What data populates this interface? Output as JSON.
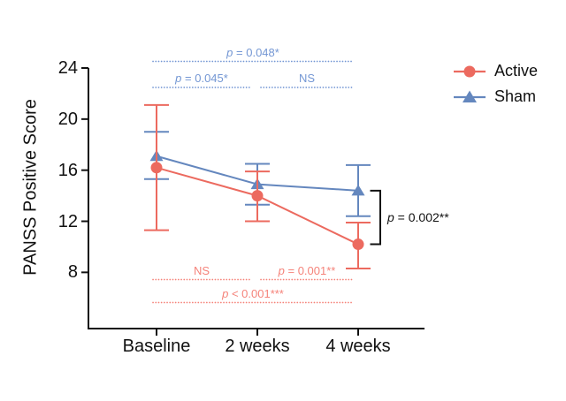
{
  "chart_data": {
    "type": "line",
    "title": "",
    "ylabel": "PANSS Positive Score",
    "categories": [
      "Baseline",
      "2 weeks",
      "4 weeks"
    ],
    "yticks": [
      24,
      20,
      16,
      12,
      8
    ],
    "ylim": [
      3.5,
      24
    ],
    "grid": false,
    "legend_position": "right",
    "legend": [
      "Active",
      "Sham"
    ],
    "series": [
      {
        "name": "Sham",
        "marker": "triangle",
        "color": "#6487BE",
        "values": [
          17.1,
          14.9,
          14.4
        ],
        "err_low": [
          15.3,
          13.3,
          12.4
        ],
        "err_high": [
          19.0,
          16.5,
          16.4
        ]
      },
      {
        "name": "Active",
        "marker": "circle",
        "color": "#EC6A5F",
        "values": [
          16.2,
          14.0,
          10.2
        ],
        "err_low": [
          11.3,
          12.0,
          8.3
        ],
        "err_high": [
          21.1,
          15.9,
          11.9
        ]
      }
    ],
    "comparisons": {
      "sham_color": "#7497D4",
      "active_color": "#F5837A",
      "sham": [
        {
          "label": "p = 0.048*",
          "from": 0,
          "to": 2,
          "row": 0
        },
        {
          "label": "p = 0.045*",
          "from": 0,
          "to": 1,
          "row": 1
        },
        {
          "label": "NS",
          "from": 1,
          "to": 2,
          "row": 1
        }
      ],
      "active": [
        {
          "label": "NS",
          "from": 0,
          "to": 1,
          "row": 0
        },
        {
          "label": "p = 0.001**",
          "from": 1,
          "to": 2,
          "row": 0
        },
        {
          "label": "p < 0.001***",
          "from": 0,
          "to": 2,
          "row": 1
        }
      ],
      "between_groups": {
        "label": "p = 0.002**",
        "at_category": "4 weeks"
      }
    }
  }
}
